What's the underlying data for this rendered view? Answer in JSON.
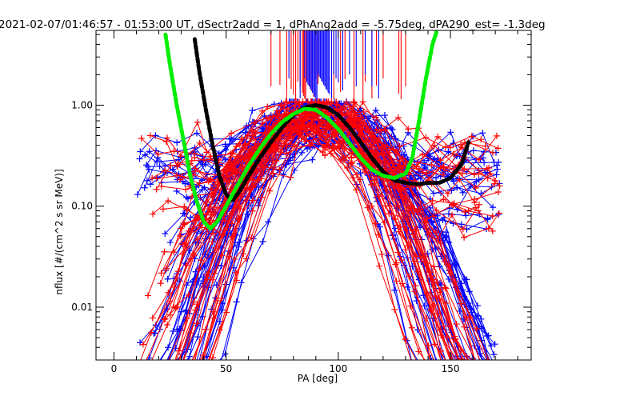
{
  "chart_data": {
    "type": "line",
    "title": "2021-02-07/01:46:57 - 01:53:00 UT, dSectr2add = 1, dPhAng2add = -5.75deg, dPA290_est=  -1.3deg",
    "xlabel": "PA [deg]",
    "ylabel": "nflux [#/(cm^2 s sr MeV)]",
    "xlim": [
      -8,
      186
    ],
    "ylim": [
      0.003,
      5.5
    ],
    "yscale": "log",
    "x_ticks": [
      0,
      50,
      100,
      150
    ],
    "x_tick_labels": [
      "0",
      "50",
      "100",
      "150"
    ],
    "y_ticks": [
      0.01,
      0.1,
      1.0
    ],
    "y_tick_labels": [
      "0.01",
      "0.10",
      "1.00"
    ],
    "grid": false,
    "series": [
      {
        "color": "#0000ff",
        "style": "line-plus",
        "count": 55,
        "x_range": [
          12,
          170
        ],
        "peak_x": [
          86,
          97
        ],
        "y_range": [
          0.003,
          1.05
        ]
      },
      {
        "color": "#ff0000",
        "style": "line-plus",
        "count": 50,
        "x_range": [
          10,
          168
        ],
        "peak_x": [
          84,
          99
        ],
        "y_range": [
          0.003,
          1.05
        ]
      },
      {
        "color": "#000000",
        "style": "dashed-thick",
        "x": [
          36,
          38,
          41,
          44,
          47,
          50,
          53,
          56,
          60,
          65,
          70,
          75,
          80,
          85,
          90,
          95,
          100,
          105,
          110,
          115,
          120,
          125,
          130,
          135,
          140,
          145,
          150,
          155,
          158
        ],
        "y": [
          4.5,
          2.2,
          0.9,
          0.4,
          0.2,
          0.13,
          0.115,
          0.14,
          0.2,
          0.3,
          0.43,
          0.6,
          0.8,
          0.95,
          1.0,
          0.95,
          0.8,
          0.6,
          0.43,
          0.3,
          0.22,
          0.18,
          0.17,
          0.165,
          0.17,
          0.17,
          0.19,
          0.26,
          0.43
        ]
      },
      {
        "color": "#00ee00",
        "style": "dashed-thick",
        "x": [
          23,
          25,
          28,
          31,
          34,
          37,
          40,
          43,
          46,
          50,
          55,
          60,
          65,
          70,
          75,
          80,
          85,
          90,
          95,
          100,
          105,
          110,
          115,
          120,
          125,
          130,
          133,
          136,
          139,
          142,
          144
        ],
        "y": [
          5.0,
          2.5,
          1.0,
          0.45,
          0.2,
          0.11,
          0.07,
          0.06,
          0.07,
          0.1,
          0.16,
          0.25,
          0.37,
          0.52,
          0.68,
          0.82,
          0.92,
          0.9,
          0.75,
          0.58,
          0.42,
          0.3,
          0.23,
          0.2,
          0.19,
          0.21,
          0.3,
          0.7,
          1.8,
          4.0,
          5.5
        ]
      }
    ],
    "top_ticks": {
      "red_x": [
        70,
        74,
        77,
        79,
        80,
        81,
        82,
        83,
        84,
        84.5,
        85,
        85.5,
        86,
        87,
        88,
        89,
        90,
        91,
        98,
        101,
        103,
        107,
        111,
        112,
        115,
        117,
        120,
        127,
        128,
        130
      ],
      "blue_x": [
        78,
        83,
        85,
        86,
        86.5,
        87,
        87.5,
        88,
        88.5,
        89,
        89.5,
        90,
        90.5,
        91,
        91.5,
        92,
        92.5,
        93,
        93.5,
        94,
        94.5,
        95,
        95.5,
        96,
        97,
        98,
        99,
        100,
        102,
        105,
        108,
        112,
        115,
        118
      ]
    }
  }
}
